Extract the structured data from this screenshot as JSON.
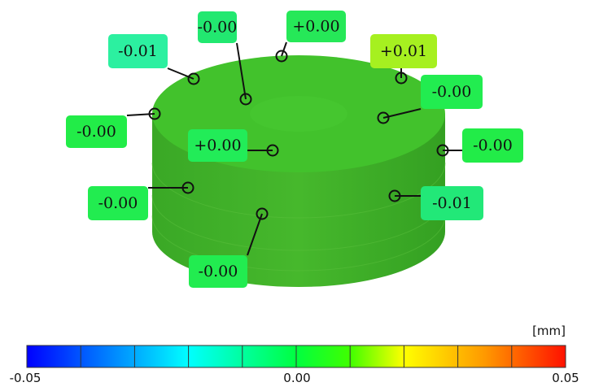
{
  "annotations": [
    {
      "label": "-0.01"
    },
    {
      "label": "-0.00"
    },
    {
      "label": "+0.00"
    },
    {
      "label": "+0.01"
    },
    {
      "label": "-0.00"
    },
    {
      "label": "-0.00"
    },
    {
      "label": "+0.00"
    },
    {
      "label": "-0.00"
    },
    {
      "label": "-0.00"
    },
    {
      "label": "-0.01"
    },
    {
      "label": "-0.00"
    }
  ],
  "color_bar": {
    "unit": "[mm]",
    "ticks": [
      "-0.05",
      "0.00",
      "0.05"
    ]
  }
}
